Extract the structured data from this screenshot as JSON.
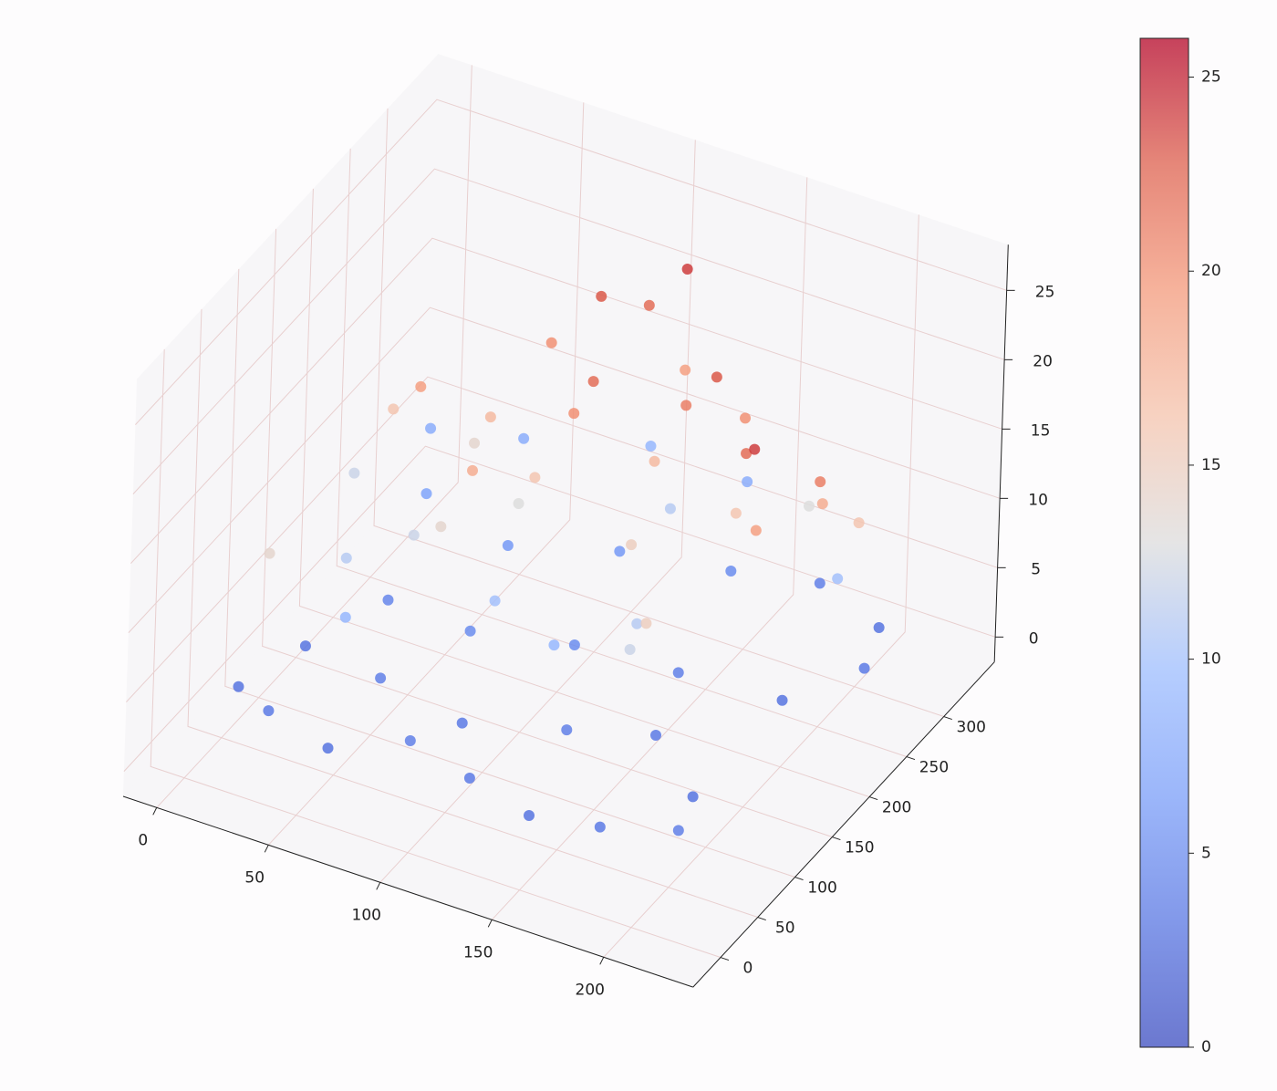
{
  "chart_data": {
    "type": "scatter3d",
    "colormap": "coolwarm",
    "clim": [
      0,
      26
    ],
    "cticks": [
      0,
      5,
      10,
      15,
      20,
      25
    ],
    "xlim": [
      -15,
      240
    ],
    "ylim": [
      -37,
      368
    ],
    "zlim": [
      -1.8,
      28.3
    ],
    "xticks": [
      0,
      50,
      100,
      150,
      200
    ],
    "yticks": [
      0,
      50,
      100,
      150,
      200,
      250,
      300
    ],
    "zticks": [
      0,
      5,
      10,
      15,
      20,
      25
    ],
    "grid": true,
    "x": [
      10,
      30,
      60,
      90,
      120,
      150,
      180,
      210,
      200,
      170,
      140,
      100,
      60,
      20,
      40,
      80,
      120,
      160,
      200,
      220,
      210,
      180,
      150,
      110,
      70,
      30,
      15,
      50,
      100,
      140,
      20,
      30,
      45,
      60,
      70,
      80,
      95,
      110,
      120,
      130,
      90,
      100,
      110,
      115,
      60,
      75,
      85,
      140,
      150,
      160,
      170,
      180,
      190,
      200,
      205,
      215,
      220,
      225,
      160,
      150,
      130,
      170,
      180,
      100,
      50,
      40,
      25,
      135,
      190,
      210
    ],
    "y": [
      40,
      20,
      10,
      30,
      20,
      10,
      15,
      30,
      80,
      120,
      90,
      70,
      80,
      100,
      150,
      140,
      160,
      180,
      200,
      250,
      300,
      310,
      280,
      250,
      220,
      230,
      280,
      300,
      320,
      330,
      160,
      180,
      170,
      200,
      190,
      240,
      260,
      280,
      300,
      270,
      170,
      160,
      180,
      190,
      120,
      110,
      120,
      200,
      210,
      220,
      230,
      190,
      170,
      150,
      140,
      200,
      180,
      220,
      120,
      140,
      100,
      80,
      70,
      110,
      60,
      90,
      30,
      240,
      260,
      240
    ],
    "z": [
      3,
      3.5,
      3,
      4,
      3.5,
      3,
      3.5,
      4,
      3,
      3.5,
      4,
      3.5,
      4,
      3,
      4.5,
      5,
      5,
      4,
      3,
      3.5,
      3,
      4,
      5,
      6,
      6,
      7,
      8,
      8,
      9,
      8,
      12,
      16,
      19,
      14,
      17,
      20,
      23,
      22,
      24,
      19,
      13,
      16,
      20,
      22,
      12,
      14,
      18,
      17,
      21,
      23,
      20,
      16,
      22,
      24,
      19,
      18,
      21,
      16,
      11,
      15,
      9,
      12,
      15,
      10,
      9,
      11,
      14,
      11,
      13,
      10
    ]
  }
}
